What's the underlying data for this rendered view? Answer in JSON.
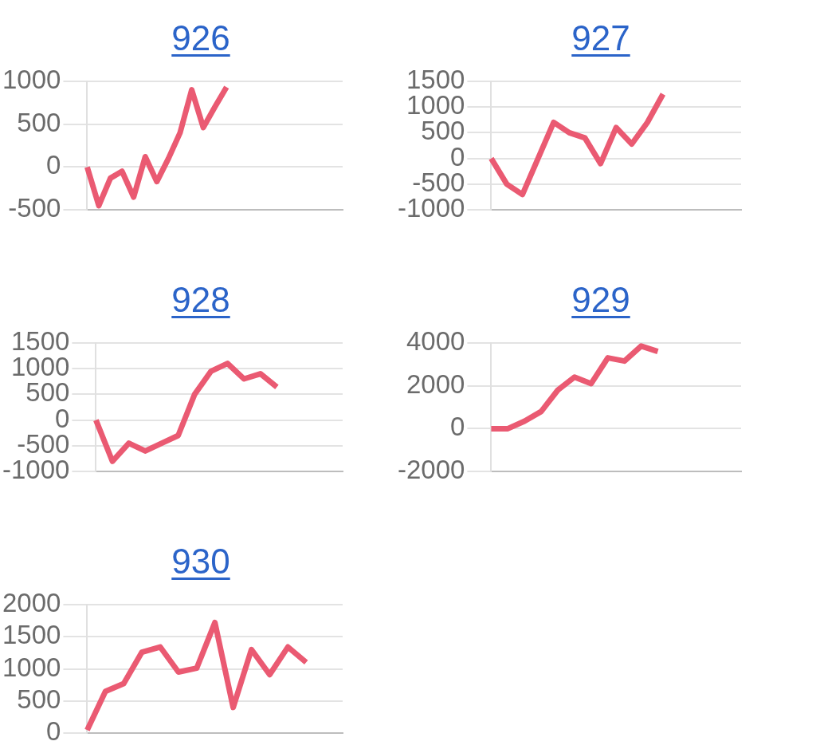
{
  "chart_data": [
    {
      "type": "line",
      "title": "926",
      "categories": [
        null,
        null,
        null,
        null,
        null,
        null,
        null,
        null,
        null,
        null,
        null,
        null,
        null,
        null,
        null,
        null,
        null,
        null,
        null,
        null,
        null,
        null,
        null
      ],
      "values": [
        0,
        -450,
        -130,
        -50,
        -350,
        120,
        -170,
        100,
        400,
        900,
        460,
        700,
        930,
        null,
        null,
        null,
        null,
        null,
        null,
        null,
        null,
        null,
        null
      ],
      "color": "#ea5a72",
      "ylim": [
        -500,
        1000
      ],
      "yticks": [
        -500,
        0,
        500,
        1000
      ],
      "grid": "y",
      "tick_labels": "y"
    },
    {
      "type": "line",
      "title": "927",
      "categories": [
        null,
        null,
        null,
        null,
        null,
        null,
        null,
        null,
        null,
        null,
        null,
        null,
        null,
        null,
        null,
        null,
        null
      ],
      "values": [
        0,
        -500,
        -700,
        0,
        700,
        500,
        400,
        -100,
        600,
        280,
        700,
        1250,
        null,
        null,
        null,
        null,
        null
      ],
      "color": "#ea5a72",
      "ylim": [
        -1000,
        1500
      ],
      "yticks": [
        -1000,
        -500,
        0,
        500,
        1000,
        1500
      ],
      "grid": "y",
      "tick_labels": "y"
    },
    {
      "type": "line",
      "title": "928",
      "categories": [
        null,
        null,
        null,
        null,
        null,
        null,
        null,
        null,
        null,
        null,
        null,
        null,
        null,
        null,
        null,
        null
      ],
      "values": [
        0,
        -800,
        -450,
        -600,
        -450,
        -300,
        500,
        950,
        1100,
        800,
        900,
        640,
        null,
        null,
        null,
        null
      ],
      "color": "#ea5a72",
      "ylim": [
        -1000,
        1500
      ],
      "yticks": [
        -1000,
        -500,
        0,
        500,
        1000,
        1500
      ],
      "grid": "y",
      "tick_labels": "y"
    },
    {
      "type": "line",
      "title": "929",
      "categories": [
        null,
        null,
        null,
        null,
        null,
        null,
        null,
        null,
        null,
        null,
        null,
        null,
        null,
        null,
        null,
        null
      ],
      "values": [
        0,
        0,
        350,
        800,
        1800,
        2400,
        2100,
        3300,
        3150,
        3850,
        3600,
        null,
        null,
        null,
        null,
        null
      ],
      "color": "#ea5a72",
      "ylim": [
        -2000,
        4000
      ],
      "yticks": [
        -2000,
        0,
        2000,
        4000
      ],
      "grid": "y",
      "tick_labels": "y"
    },
    {
      "type": "line",
      "title": "930",
      "categories": [
        null,
        null,
        null,
        null,
        null,
        null,
        null,
        null,
        null,
        null,
        null,
        null,
        null,
        null,
        null
      ],
      "values": [
        50,
        650,
        770,
        1260,
        1340,
        950,
        1010,
        1720,
        400,
        1300,
        910,
        1340,
        1100,
        null,
        null
      ],
      "color": "#ea5a72",
      "ylim": [
        0,
        2000
      ],
      "yticks": [
        0,
        500,
        1000,
        1500,
        2000
      ],
      "grid": "y",
      "tick_labels": "y"
    }
  ]
}
